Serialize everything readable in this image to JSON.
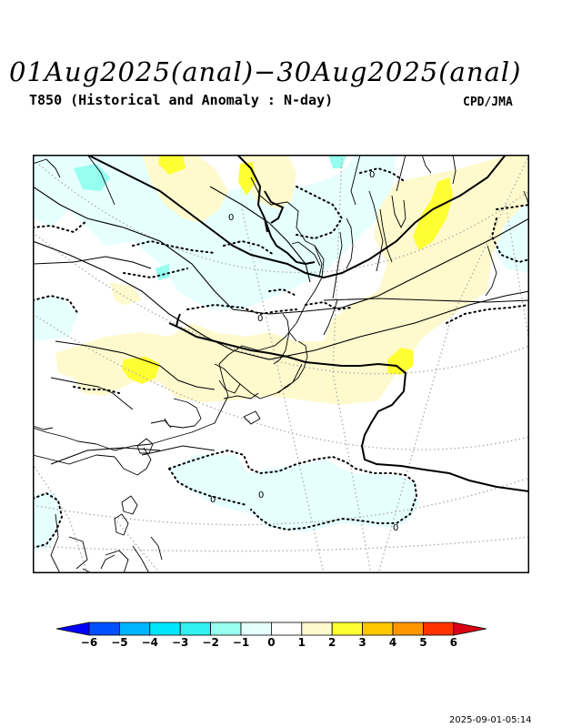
{
  "header": {
    "title": "01Aug2025(anal)−30Aug2025(anal)",
    "subtitle": "T850 (Historical and Anomaly : N-day)",
    "organization": "CPD/JMA"
  },
  "map": {
    "contour_labels": [
      "0",
      "0",
      "0",
      "0",
      "0",
      "0"
    ]
  },
  "colorbar": {
    "labels": [
      "−6",
      "−5",
      "−4",
      "−3",
      "−2",
      "−1",
      "0",
      "1",
      "2",
      "3",
      "4",
      "5",
      "6"
    ],
    "colors": [
      "#0000ff",
      "#0050ff",
      "#00b4ff",
      "#00e6ff",
      "#32f0f0",
      "#96fff0",
      "#e6ffff",
      "#ffffff",
      "#fffacd",
      "#ffff32",
      "#ffc800",
      "#ff9600",
      "#ff3200",
      "#dc0014"
    ]
  },
  "footer": {
    "timestamp": "2025-09-01-05:14"
  }
}
